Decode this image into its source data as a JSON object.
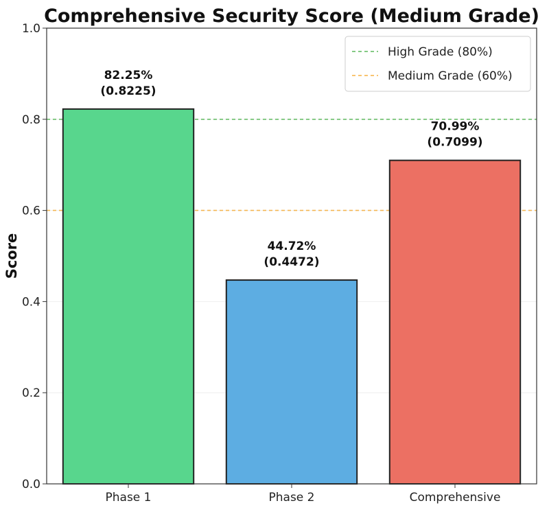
{
  "chart_data": {
    "type": "bar",
    "title": "Comprehensive Security Score (Medium Grade)",
    "xlabel": "",
    "ylabel": "Score",
    "ylim": [
      0,
      1.0
    ],
    "yticks": [
      "0.0",
      "0.2",
      "0.4",
      "0.6",
      "0.8",
      "1.0"
    ],
    "grid": true,
    "categories": [
      "Phase 1",
      "Phase 2",
      "Comprehensive"
    ],
    "values": [
      0.8225,
      0.4472,
      0.7099
    ],
    "bar_colors": [
      "#58d68d",
      "#5dade2",
      "#ec7063"
    ],
    "data_labels": [
      [
        "82.25%",
        "(0.8225)"
      ],
      [
        "44.72%",
        "(0.4472)"
      ],
      [
        "70.99%",
        "(0.7099)"
      ]
    ],
    "reference_lines": [
      {
        "name": "High Grade (80%)",
        "value": 0.8,
        "color": "#5cb85c"
      },
      {
        "name": "Medium Grade (60%)",
        "value": 0.6,
        "color": "#f5b041"
      }
    ],
    "legend_position": "top-right"
  }
}
